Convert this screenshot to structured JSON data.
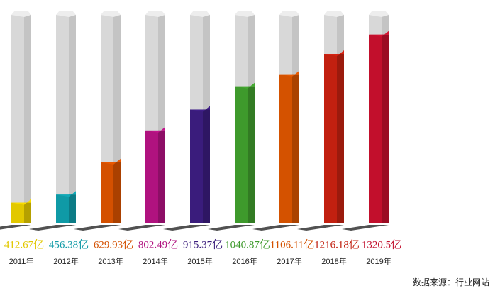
{
  "chart_data": {
    "type": "bar",
    "categories": [
      "2011年",
      "2012年",
      "2013年",
      "2014年",
      "2015年",
      "2016年",
      "2017年",
      "2018年",
      "2019年"
    ],
    "values": [
      412.67,
      456.38,
      629.93,
      802.49,
      915.37,
      1040.87,
      1106.11,
      1216.18,
      1320.5
    ],
    "value_labels": [
      "412.67亿",
      "456.38亿",
      "629.93亿",
      "802.49亿",
      "915.37亿",
      "1040.87亿",
      "1106.11亿",
      "1216.18亿",
      "1320.5亿"
    ],
    "colors": [
      "#e2c800",
      "#0f9aa6",
      "#d45000",
      "#b0127f",
      "#3a1c7c",
      "#3e9a2c",
      "#d45200",
      "#c22010",
      "#c20f2c"
    ],
    "ylim": [
      300,
      1450
    ],
    "source": "数据来源：行业网站"
  }
}
